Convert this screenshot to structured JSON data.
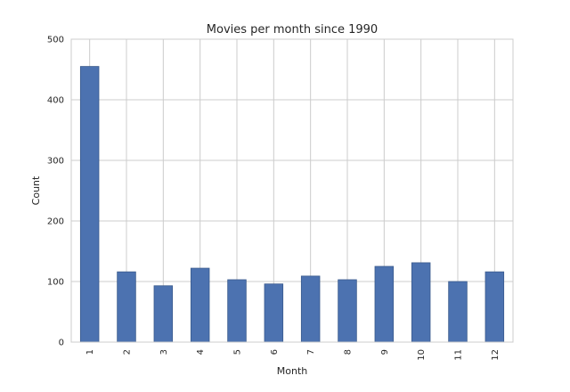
{
  "chart_data": {
    "type": "bar",
    "title": "Movies per month since 1990",
    "xlabel": "Month",
    "ylabel": "Count",
    "categories": [
      "1",
      "2",
      "3",
      "4",
      "5",
      "6",
      "7",
      "8",
      "9",
      "10",
      "11",
      "12"
    ],
    "values": [
      455,
      116,
      93,
      122,
      103,
      96,
      109,
      103,
      125,
      131,
      100,
      116
    ],
    "ylim": [
      0,
      500
    ],
    "yticks": [
      "0",
      "100",
      "200",
      "300",
      "400",
      "500"
    ],
    "grid": true,
    "color": "#4c72b0"
  }
}
